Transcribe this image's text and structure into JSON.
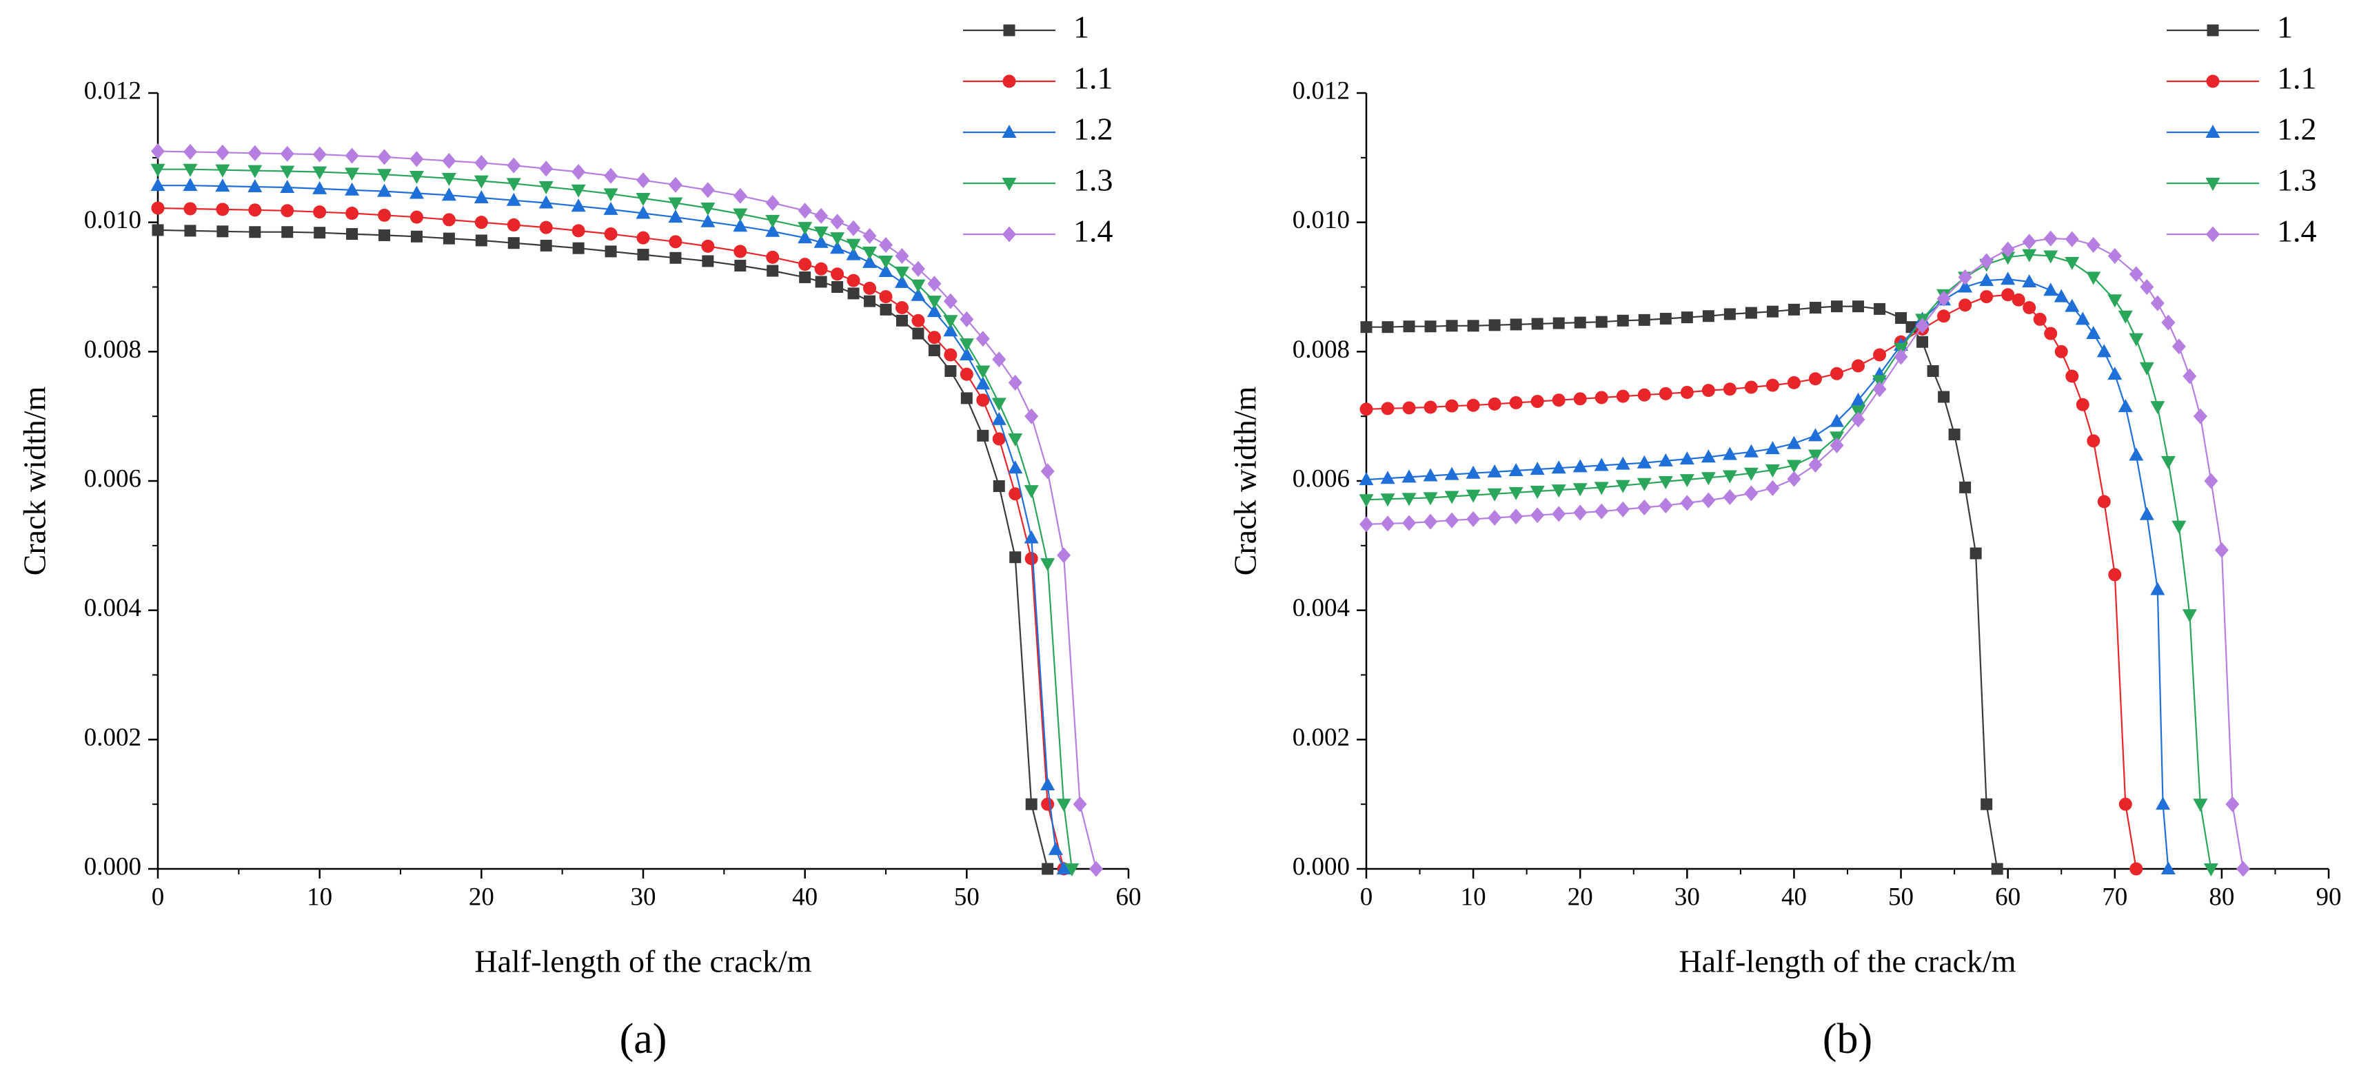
{
  "chart_data": [
    {
      "type": "line",
      "xlabel": "Half-length of the crack/m",
      "ylabel": "Crack width/m",
      "caption": "(a)",
      "xlim": [
        0,
        60
      ],
      "xticks": [
        0,
        10,
        20,
        30,
        40,
        50,
        60
      ],
      "ylim": [
        0,
        0.012
      ],
      "yticks": [
        {
          "value": 0,
          "label": "0.000"
        },
        {
          "value": 0.002,
          "label": "0.002"
        },
        {
          "value": 0.004,
          "label": "0.004"
        },
        {
          "value": 0.006,
          "label": "0.006"
        },
        {
          "value": 0.008,
          "label": "0.008"
        },
        {
          "value": 0.01,
          "label": "0.010"
        },
        {
          "value": 0.012,
          "label": "0.012"
        }
      ],
      "legend": "upper right",
      "series": [
        {
          "name": "1",
          "color": "#3a3a3a",
          "marker": "square",
          "x": [
            0,
            2,
            4,
            6,
            8,
            10,
            12,
            14,
            16,
            18,
            20,
            22,
            24,
            26,
            28,
            30,
            32,
            34,
            36,
            38,
            40,
            41,
            42,
            43,
            44,
            45,
            46,
            47,
            48,
            49,
            50,
            51,
            52,
            53,
            54,
            55
          ],
          "values": [
            0.00988,
            0.00987,
            0.00986,
            0.00985,
            0.00985,
            0.00984,
            0.00982,
            0.0098,
            0.00978,
            0.00975,
            0.00972,
            0.00968,
            0.00964,
            0.0096,
            0.00955,
            0.0095,
            0.00945,
            0.0094,
            0.00933,
            0.00925,
            0.00915,
            0.00908,
            0.009,
            0.0089,
            0.00878,
            0.00865,
            0.00848,
            0.00828,
            0.00802,
            0.0077,
            0.00728,
            0.0067,
            0.00592,
            0.00482,
            0.001,
            0
          ]
        },
        {
          "name": "1.1",
          "color": "#e8262a",
          "marker": "circle",
          "x": [
            0,
            2,
            4,
            6,
            8,
            10,
            12,
            14,
            16,
            18,
            20,
            22,
            24,
            26,
            28,
            30,
            32,
            34,
            36,
            38,
            40,
            41,
            42,
            43,
            44,
            45,
            46,
            47,
            48,
            49,
            50,
            51,
            52,
            53,
            54,
            55,
            56
          ],
          "values": [
            0.01022,
            0.01021,
            0.0102,
            0.01019,
            0.01018,
            0.01016,
            0.01014,
            0.01011,
            0.01008,
            0.01004,
            0.01,
            0.00996,
            0.00992,
            0.00987,
            0.00982,
            0.00976,
            0.0097,
            0.00963,
            0.00955,
            0.00946,
            0.00935,
            0.00928,
            0.0092,
            0.0091,
            0.00898,
            0.00885,
            0.00868,
            0.00848,
            0.00822,
            0.00795,
            0.00765,
            0.00725,
            0.00665,
            0.0058,
            0.0048,
            0.001,
            0
          ]
        },
        {
          "name": "1.2",
          "color": "#1f6fd9",
          "marker": "triangle-up",
          "x": [
            0,
            2,
            4,
            6,
            8,
            10,
            12,
            14,
            16,
            18,
            20,
            22,
            24,
            26,
            28,
            30,
            32,
            34,
            36,
            38,
            40,
            41,
            42,
            43,
            44,
            45,
            46,
            47,
            48,
            49,
            50,
            51,
            52,
            53,
            54,
            55,
            55.5,
            56
          ],
          "values": [
            0.01057,
            0.01057,
            0.01056,
            0.01055,
            0.01054,
            0.01052,
            0.0105,
            0.01048,
            0.01045,
            0.01042,
            0.01038,
            0.01034,
            0.0103,
            0.01025,
            0.0102,
            0.01014,
            0.01008,
            0.01001,
            0.00994,
            0.00986,
            0.00976,
            0.00969,
            0.0096,
            0.0095,
            0.00938,
            0.00924,
            0.00907,
            0.00887,
            0.00862,
            0.00832,
            0.00795,
            0.0075,
            0.00695,
            0.0062,
            0.00512,
            0.0013,
            0.0003,
            0
          ]
        },
        {
          "name": "1.3",
          "color": "#2aa65a",
          "marker": "triangle-down",
          "x": [
            0,
            2,
            4,
            6,
            8,
            10,
            12,
            14,
            16,
            18,
            20,
            22,
            24,
            26,
            28,
            30,
            32,
            34,
            36,
            38,
            40,
            41,
            42,
            43,
            44,
            45,
            46,
            47,
            48,
            49,
            50,
            51,
            52,
            53,
            54,
            55,
            56,
            56.5
          ],
          "values": [
            0.01082,
            0.01082,
            0.01081,
            0.0108,
            0.01079,
            0.01078,
            0.01076,
            0.01074,
            0.01071,
            0.01068,
            0.01064,
            0.0106,
            0.01055,
            0.0105,
            0.01044,
            0.01037,
            0.0103,
            0.01022,
            0.01013,
            0.01003,
            0.00992,
            0.00985,
            0.00976,
            0.00966,
            0.00954,
            0.0094,
            0.00923,
            0.00903,
            0.00878,
            0.00848,
            0.00812,
            0.0077,
            0.0072,
            0.00665,
            0.00585,
            0.00472,
            0.001,
            0
          ]
        },
        {
          "name": "1.4",
          "color": "#b57ee0",
          "marker": "diamond",
          "x": [
            0,
            2,
            4,
            6,
            8,
            10,
            12,
            14,
            16,
            18,
            20,
            22,
            24,
            26,
            28,
            30,
            32,
            34,
            36,
            38,
            40,
            41,
            42,
            43,
            44,
            45,
            46,
            47,
            48,
            49,
            50,
            51,
            52,
            53,
            54,
            55,
            56,
            57,
            58
          ],
          "values": [
            0.0111,
            0.01109,
            0.01108,
            0.01107,
            0.01106,
            0.01105,
            0.01103,
            0.01101,
            0.01098,
            0.01095,
            0.01092,
            0.01088,
            0.01083,
            0.01078,
            0.01072,
            0.01065,
            0.01058,
            0.0105,
            0.01041,
            0.0103,
            0.01018,
            0.0101,
            0.01001,
            0.00991,
            0.00979,
            0.00965,
            0.00948,
            0.00928,
            0.00905,
            0.00878,
            0.0085,
            0.0082,
            0.00788,
            0.00752,
            0.007,
            0.00615,
            0.00485,
            0.001,
            0
          ]
        }
      ]
    },
    {
      "type": "line",
      "xlabel": "Half-length of the crack/m",
      "ylabel": "Crack width/m",
      "caption": "(b)",
      "xlim": [
        0,
        90
      ],
      "xticks": [
        0,
        10,
        20,
        30,
        40,
        50,
        60,
        70,
        80,
        90
      ],
      "ylim": [
        0,
        0.012
      ],
      "yticks": [
        {
          "value": 0,
          "label": "0.000"
        },
        {
          "value": 0.002,
          "label": "0.002"
        },
        {
          "value": 0.004,
          "label": "0.004"
        },
        {
          "value": 0.006,
          "label": "0.006"
        },
        {
          "value": 0.008,
          "label": "0.008"
        },
        {
          "value": 0.01,
          "label": "0.010"
        },
        {
          "value": 0.012,
          "label": "0.012"
        }
      ],
      "legend": "upper right",
      "series": [
        {
          "name": "1",
          "color": "#3a3a3a",
          "marker": "square",
          "x": [
            0,
            2,
            4,
            6,
            8,
            10,
            12,
            14,
            16,
            18,
            20,
            22,
            24,
            26,
            28,
            30,
            32,
            34,
            36,
            38,
            40,
            42,
            44,
            46,
            48,
            50,
            51,
            52,
            53,
            54,
            55,
            56,
            57,
            58,
            59
          ],
          "values": [
            0.00838,
            0.00838,
            0.00839,
            0.00839,
            0.0084,
            0.0084,
            0.00841,
            0.00842,
            0.00843,
            0.00844,
            0.00845,
            0.00846,
            0.00848,
            0.00849,
            0.00851,
            0.00853,
            0.00855,
            0.00858,
            0.0086,
            0.00862,
            0.00865,
            0.00868,
            0.0087,
            0.0087,
            0.00866,
            0.00852,
            0.00838,
            0.00815,
            0.0077,
            0.0073,
            0.00672,
            0.0059,
            0.00488,
            0.001,
            0
          ]
        },
        {
          "name": "1.1",
          "color": "#e8262a",
          "marker": "circle",
          "x": [
            0,
            2,
            4,
            6,
            8,
            10,
            12,
            14,
            16,
            18,
            20,
            22,
            24,
            26,
            28,
            30,
            32,
            34,
            36,
            38,
            40,
            42,
            44,
            46,
            48,
            50,
            52,
            54,
            56,
            58,
            60,
            61,
            62,
            63,
            64,
            65,
            66,
            67,
            68,
            69,
            70,
            71,
            72
          ],
          "values": [
            0.00711,
            0.00712,
            0.00713,
            0.00714,
            0.00716,
            0.00717,
            0.00719,
            0.00721,
            0.00723,
            0.00725,
            0.00727,
            0.00729,
            0.00731,
            0.00733,
            0.00735,
            0.00737,
            0.0074,
            0.00742,
            0.00745,
            0.00748,
            0.00752,
            0.00758,
            0.00766,
            0.00778,
            0.00795,
            0.00815,
            0.00835,
            0.00855,
            0.00872,
            0.00885,
            0.00888,
            0.0088,
            0.00868,
            0.0085,
            0.00828,
            0.008,
            0.00762,
            0.00718,
            0.00662,
            0.00568,
            0.00455,
            0.001,
            0
          ]
        },
        {
          "name": "1.2",
          "color": "#1f6fd9",
          "marker": "triangle-up",
          "x": [
            0,
            2,
            4,
            6,
            8,
            10,
            12,
            14,
            16,
            18,
            20,
            22,
            24,
            26,
            28,
            30,
            32,
            34,
            36,
            38,
            40,
            42,
            44,
            46,
            48,
            50,
            52,
            54,
            56,
            58,
            60,
            62,
            64,
            65,
            66,
            67,
            68,
            69,
            70,
            71,
            72,
            73,
            74,
            74.5,
            75
          ],
          "values": [
            0.00602,
            0.00604,
            0.00606,
            0.00608,
            0.0061,
            0.00612,
            0.00614,
            0.00616,
            0.00618,
            0.0062,
            0.00622,
            0.00624,
            0.00626,
            0.00628,
            0.00631,
            0.00634,
            0.00637,
            0.00641,
            0.00645,
            0.0065,
            0.00658,
            0.0067,
            0.00692,
            0.00725,
            0.00765,
            0.0081,
            0.0085,
            0.0088,
            0.009,
            0.0091,
            0.00912,
            0.00908,
            0.00895,
            0.00885,
            0.0087,
            0.0085,
            0.00828,
            0.008,
            0.00765,
            0.00715,
            0.0064,
            0.00548,
            0.00432,
            0.001,
            0
          ]
        },
        {
          "name": "1.3",
          "color": "#2aa65a",
          "marker": "triangle-down",
          "x": [
            0,
            2,
            4,
            6,
            8,
            10,
            12,
            14,
            16,
            18,
            20,
            22,
            24,
            26,
            28,
            30,
            32,
            34,
            36,
            38,
            40,
            42,
            44,
            46,
            48,
            50,
            52,
            54,
            56,
            58,
            60,
            62,
            64,
            66,
            68,
            70,
            71,
            72,
            73,
            74,
            75,
            76,
            77,
            78,
            79
          ],
          "values": [
            0.00571,
            0.00572,
            0.00573,
            0.00574,
            0.00576,
            0.00578,
            0.0058,
            0.00582,
            0.00584,
            0.00586,
            0.00588,
            0.0059,
            0.00593,
            0.00596,
            0.00599,
            0.00602,
            0.00605,
            0.00608,
            0.00612,
            0.00617,
            0.00624,
            0.0064,
            0.00668,
            0.00708,
            0.00755,
            0.00805,
            0.0085,
            0.00888,
            0.00915,
            0.00935,
            0.00946,
            0.0095,
            0.00948,
            0.00938,
            0.00915,
            0.0088,
            0.00855,
            0.0082,
            0.00775,
            0.00715,
            0.0063,
            0.0053,
            0.00393,
            0.001,
            0
          ]
        },
        {
          "name": "1.4",
          "color": "#b57ee0",
          "marker": "diamond",
          "x": [
            0,
            2,
            4,
            6,
            8,
            10,
            12,
            14,
            16,
            18,
            20,
            22,
            24,
            26,
            28,
            30,
            32,
            34,
            36,
            38,
            40,
            42,
            44,
            46,
            48,
            50,
            52,
            54,
            56,
            58,
            60,
            62,
            64,
            66,
            68,
            70,
            72,
            73,
            74,
            75,
            76,
            77,
            78,
            79,
            80,
            81,
            82
          ],
          "values": [
            0.00533,
            0.00534,
            0.00535,
            0.00537,
            0.00539,
            0.00541,
            0.00543,
            0.00545,
            0.00547,
            0.00549,
            0.00551,
            0.00553,
            0.00556,
            0.00559,
            0.00562,
            0.00566,
            0.0057,
            0.00575,
            0.00581,
            0.00589,
            0.00603,
            0.00625,
            0.00655,
            0.00695,
            0.00742,
            0.00792,
            0.0084,
            0.00882,
            0.00915,
            0.0094,
            0.00958,
            0.0097,
            0.00975,
            0.00974,
            0.00965,
            0.00948,
            0.0092,
            0.009,
            0.00875,
            0.00845,
            0.00808,
            0.00762,
            0.007,
            0.006,
            0.00493,
            0.001,
            0
          ]
        }
      ]
    }
  ]
}
